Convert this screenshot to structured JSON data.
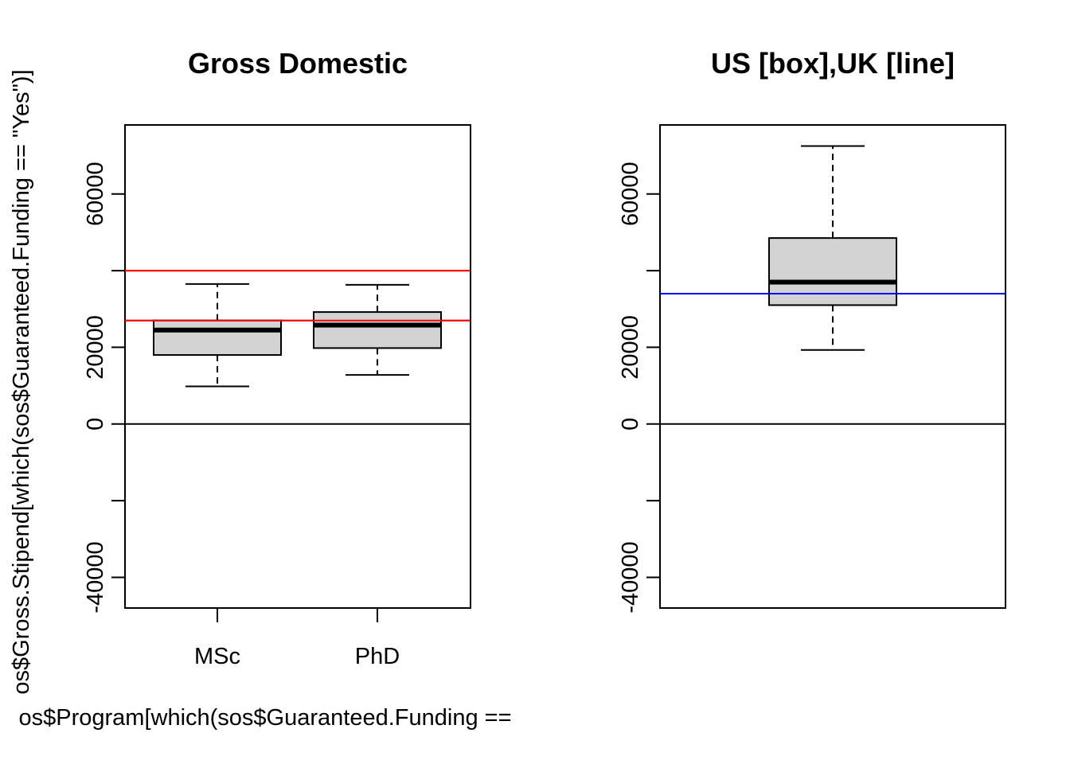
{
  "chart_data": [
    {
      "type": "box",
      "title": "Gross Domestic",
      "xlabel": "os$Program[which(sos$Guaranteed.Funding ==",
      "ylabel": "os$Gross.Stipend[which(sos$Guaranteed.Funding == \"Yes\")]",
      "ylim": [
        -48000,
        78000
      ],
      "yticks": [
        -40000,
        -20000,
        0,
        20000,
        40000,
        60000
      ],
      "ytick_labels": [
        "-40000",
        "",
        "0",
        "20000",
        "",
        "60000"
      ],
      "categories": [
        "MSc",
        "PhD"
      ],
      "boxes": [
        {
          "name": "MSc",
          "whisker_low": 9800,
          "q1": 18000,
          "median": 24500,
          "q3": 27000,
          "whisker_high": 36500
        },
        {
          "name": "PhD",
          "whisker_low": 12800,
          "q1": 19800,
          "median": 25800,
          "q3": 29200,
          "whisker_high": 36300
        }
      ],
      "reference_lines": [
        {
          "value": 0,
          "color": "#000000"
        },
        {
          "value": 40000,
          "color": "#ff0000"
        },
        {
          "value": 27000,
          "color": "#ff0000"
        }
      ],
      "box_fill": "#d3d3d3"
    },
    {
      "type": "box",
      "title": "US [box],UK [line]",
      "ylim": [
        -48000,
        78000
      ],
      "yticks": [
        -40000,
        -20000,
        0,
        20000,
        40000,
        60000
      ],
      "ytick_labels": [
        "-40000",
        "",
        "0",
        "20000",
        "",
        "60000"
      ],
      "categories": [],
      "boxes": [
        {
          "name": "",
          "whisker_low": 19300,
          "q1": 31000,
          "median": 37000,
          "q3": 48500,
          "whisker_high": 72500
        }
      ],
      "reference_lines": [
        {
          "value": 0,
          "color": "#000000"
        },
        {
          "value": 34000,
          "color": "#0000ff"
        }
      ],
      "box_fill": "#d3d3d3"
    }
  ]
}
